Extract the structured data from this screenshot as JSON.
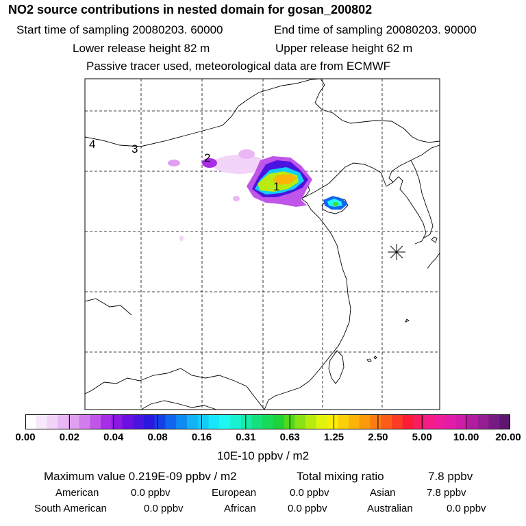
{
  "header": {
    "title": "NO2 source contributions in nested domain for gosan_200802",
    "start_time": "Start time of sampling 20080203. 60000",
    "end_time": "End time of sampling 20080203. 90000",
    "lower_release": "Lower release height   82 m",
    "upper_release": "Upper release height   62 m",
    "tracer_note": "Passive tracer used, meteorological data are from ECMWF"
  },
  "map": {
    "source_labels": [
      "1",
      "2",
      "3",
      "4"
    ],
    "receptor_marker": "receptor-star"
  },
  "colorbar": {
    "tick_labels": [
      "0.00",
      "0.02",
      "0.04",
      "0.08",
      "0.16",
      "0.31",
      "0.63",
      "1.25",
      "2.50",
      "5.00",
      "10.00",
      "20.00"
    ],
    "colors": [
      "#ffffff",
      "#f8e8fb",
      "#f2d4f8",
      "#e9b8f4",
      "#dfa0f1",
      "#d27cee",
      "#c055ea",
      "#a82de7",
      "#8c18e3",
      "#6a10e0",
      "#4a14e0",
      "#2a1ae0",
      "#1540e8",
      "#1066ee",
      "#0e8cf2",
      "#12b2f5",
      "#14ccf8",
      "#18e6fa",
      "#1ef8f4",
      "#18f2d2",
      "#16eaa8",
      "#14e07e",
      "#18da58",
      "#1ed23a",
      "#50d81c",
      "#88e214",
      "#b8ec10",
      "#e0f40c",
      "#f8ee08",
      "#fcd008",
      "#fcb408",
      "#fc980c",
      "#fc7c10",
      "#fc5c18",
      "#fc3c24",
      "#fc1c38",
      "#f81c60",
      "#f41c88",
      "#ee1c9c",
      "#e21ca8",
      "#cc1ca8",
      "#b21ca0",
      "#961c94",
      "#781a84",
      "#5e1670"
    ],
    "units": "10E-10 ppbv / m2"
  },
  "summary": {
    "max_value": "Maximum value  0.219E-09 ppbv / m2",
    "total_mixing_label": "Total mixing ratio",
    "total_mixing_value": "7.8 ppbv",
    "row1": [
      {
        "name": "American",
        "value": "0.0 ppbv"
      },
      {
        "name": "European",
        "value": "0.0 ppbv"
      },
      {
        "name": "Asian",
        "value": "7.8 ppbv"
      }
    ],
    "row2": [
      {
        "name": "South American",
        "value": "0.0 ppbv"
      },
      {
        "name": "African",
        "value": "0.0 ppbv"
      },
      {
        "name": "Australian",
        "value": "0.0 ppbv"
      }
    ]
  }
}
